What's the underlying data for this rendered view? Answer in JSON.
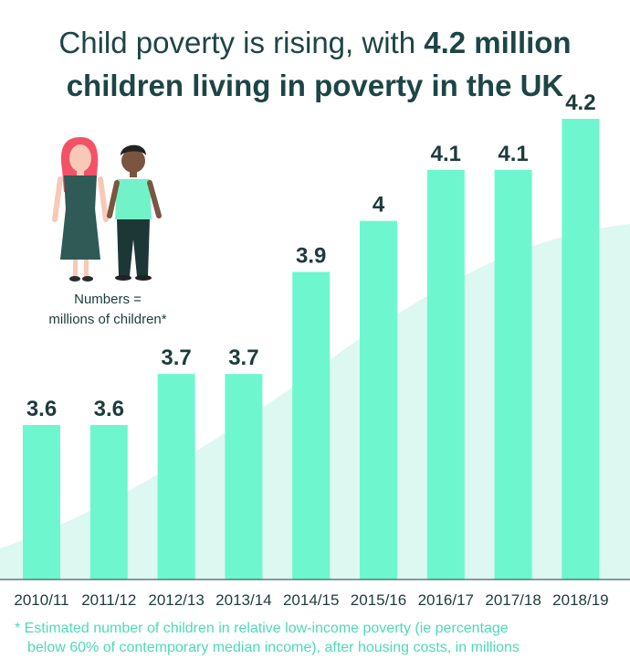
{
  "title": {
    "line1_normal": "Child poverty is rising, with ",
    "line1_bold": "4.2 million",
    "line2_bold": "children living in poverty in the UK"
  },
  "note": {
    "line1": "Numbers =",
    "line2": "millions of children*"
  },
  "footnote": {
    "line1": "* Estimated number of children in relative low-income poverty (ie percentage",
    "line2": "below 60% of contemporary median income), after housing costs, in millions"
  },
  "colors": {
    "bar": "#6ef7cf",
    "background_area": "#ddf7f1",
    "text": "#1e3b3b",
    "footnote": "#4fd9b9"
  },
  "chart_data": {
    "type": "bar",
    "title": "Child poverty is rising, with 4.2 million children living in poverty in the UK",
    "categories": [
      "2010/11",
      "2011/12",
      "2012/13",
      "2013/14",
      "2014/15",
      "2015/16",
      "2016/17",
      "2017/18",
      "2018/19"
    ],
    "values": [
      3.6,
      3.6,
      3.7,
      3.7,
      3.9,
      4,
      4.1,
      4.1,
      4.2
    ],
    "value_labels": [
      "3.6",
      "3.6",
      "3.7",
      "3.7",
      "3.9",
      "4",
      "4.1",
      "4.1",
      "4.2"
    ],
    "xlabel": "",
    "ylabel": "",
    "grid": false,
    "legend": "none"
  }
}
